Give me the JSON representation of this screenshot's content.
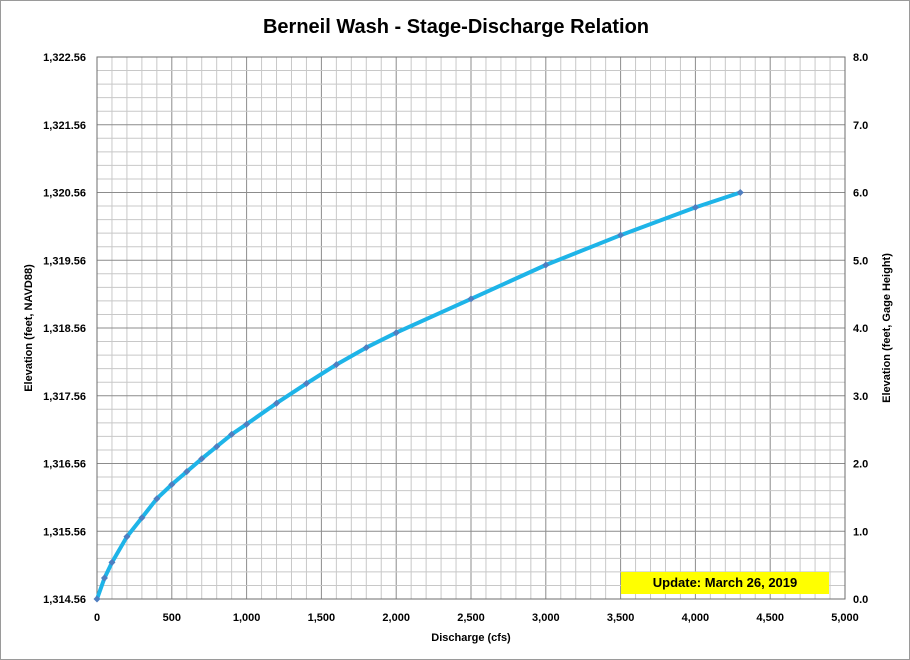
{
  "chart_data": {
    "type": "line",
    "title": "Berneil Wash - Stage-Discharge Relation",
    "xlabel": "Discharge  (cfs)",
    "ylabel": "Elevation  (feet, NAVD88)",
    "y2label": "Elevation  (feet, Gage Height)",
    "xlim": [
      0,
      5000
    ],
    "ylim": [
      1314.56,
      1322.56
    ],
    "y2lim": [
      0.0,
      8.0
    ],
    "x_ticks": [
      "0",
      "500",
      "1,000",
      "1,500",
      "2,000",
      "2,500",
      "3,000",
      "3,500",
      "4,000",
      "4,500",
      "5,000"
    ],
    "y_ticks": [
      "1,314.56",
      "1,315.56",
      "1,316.56",
      "1,317.56",
      "1,318.56",
      "1,319.56",
      "1,320.56",
      "1,321.56",
      "1,322.56"
    ],
    "y2_ticks": [
      "0.0",
      "1.0",
      "2.0",
      "3.0",
      "4.0",
      "5.0",
      "6.0",
      "7.0",
      "8.0"
    ],
    "grid": true,
    "legend": "none",
    "line_color": "#1eb4e8",
    "marker_color": "#4f7ec0",
    "x": [
      0,
      50,
      100,
      200,
      300,
      400,
      500,
      600,
      700,
      800,
      900,
      1000,
      1200,
      1400,
      1600,
      1800,
      2000,
      2500,
      3000,
      3500,
      4000,
      4300
    ],
    "y": [
      1314.56,
      1314.87,
      1315.1,
      1315.48,
      1315.76,
      1316.04,
      1316.25,
      1316.44,
      1316.63,
      1316.81,
      1316.99,
      1317.14,
      1317.45,
      1317.74,
      1318.02,
      1318.27,
      1318.49,
      1318.99,
      1319.49,
      1319.93,
      1320.34,
      1320.56
    ]
  },
  "annotation": {
    "text": "Update: March 26, 2019",
    "background": "#ffff00"
  }
}
